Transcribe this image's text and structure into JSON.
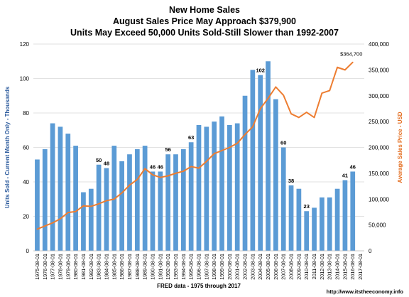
{
  "chart_data": {
    "type": "bar",
    "title": "New Home Sales",
    "subtitle_1": "August Sales Price May Approach $379,900",
    "subtitle_2": "Units May Exceed 50,000 Units Sold-Still Slower than 1992-2007",
    "xlabel": "FRED data - 1975 through 2017",
    "ylabel_left": "Units Sold - Current Month Only - Thousands",
    "ylabel_right": "Average Sales Price - USD",
    "source_credit": "http://www.itstheeconomy.info",
    "ylim_left": [
      0,
      120
    ],
    "ylim_right": [
      0,
      400000
    ],
    "yticks_left": [
      "0",
      "20",
      "40",
      "60",
      "80",
      "100",
      "120"
    ],
    "yticks_right": [
      "0",
      "50,000",
      "100,000",
      "150,000",
      "200,000",
      "250,000",
      "300,000",
      "350,000",
      "400,000"
    ],
    "categories": [
      "1975-08-01",
      "1976-08-01",
      "1977-08-01",
      "1978-08-01",
      "1979-08-01",
      "1980-08-01",
      "1981-08-01",
      "1982-08-01",
      "1983-08-01",
      "1984-08-01",
      "1985-08-01",
      "1986-08-01",
      "1987-08-01",
      "1988-08-01",
      "1989-08-01",
      "1990-08-01",
      "1991-08-01",
      "1992-08-01",
      "1993-08-01",
      "1994-08-01",
      "1995-08-01",
      "1996-08-01",
      "1997-08-01",
      "1998-08-01",
      "1999-08-01",
      "2000-08-01",
      "2001-08-01",
      "2002-08-01",
      "2003-08-01",
      "2004-08-01",
      "2005-08-01",
      "2006-08-01",
      "2007-08-01",
      "2008-08-01",
      "2009-08-01",
      "2010-08-01",
      "2011-08-01",
      "2012-08-01",
      "2013-08-01",
      "2014-08-01",
      "2015-08-01",
      "2016-08-01",
      "2017-08-01"
    ],
    "grid": true,
    "series": [
      {
        "name": "Units Sold - Current Month Only - Thousands",
        "type": "bar",
        "axis": "left",
        "color": "#5b9bd5",
        "values": [
          53,
          59,
          74,
          72,
          68,
          61,
          34,
          36,
          50,
          48,
          61,
          52,
          56,
          59,
          61,
          46,
          46,
          56,
          56,
          59,
          63,
          73,
          72,
          75,
          78,
          73,
          74,
          90,
          105,
          102,
          110,
          88,
          60,
          38,
          36,
          23,
          25,
          31,
          31,
          36,
          41,
          46,
          null
        ],
        "data_labels": [
          {
            "category": "1983-08-01",
            "text": "50"
          },
          {
            "category": "1984-08-01",
            "text": "48"
          },
          {
            "category": "1990-08-01",
            "text": "46"
          },
          {
            "category": "1991-08-01",
            "text": "46"
          },
          {
            "category": "1992-08-01",
            "text": "56"
          },
          {
            "category": "1995-08-01",
            "text": "63"
          },
          {
            "category": "2004-08-01",
            "text": "102"
          },
          {
            "category": "2007-08-01",
            "text": "60"
          },
          {
            "category": "2008-08-01",
            "text": "38"
          },
          {
            "category": "2010-08-01",
            "text": "23"
          },
          {
            "category": "2015-08-01",
            "text": "41"
          },
          {
            "category": "2016-08-01",
            "text": "46"
          }
        ]
      },
      {
        "name": "Average Sales Price - USD",
        "type": "line",
        "axis": "right",
        "color": "#ed7d31",
        "values": [
          42000,
          48000,
          54000,
          62000,
          74000,
          76000,
          87000,
          86000,
          91000,
          97000,
          100000,
          112000,
          127000,
          138000,
          159000,
          147000,
          142000,
          145000,
          150000,
          154000,
          163000,
          160000,
          173000,
          188000,
          194000,
          200000,
          208000,
          225000,
          240000,
          275000,
          295000,
          317000,
          301000,
          265000,
          258000,
          268000,
          258000,
          305000,
          310000,
          355000,
          350000,
          364700,
          null
        ],
        "end_label": "$364,700"
      }
    ]
  }
}
